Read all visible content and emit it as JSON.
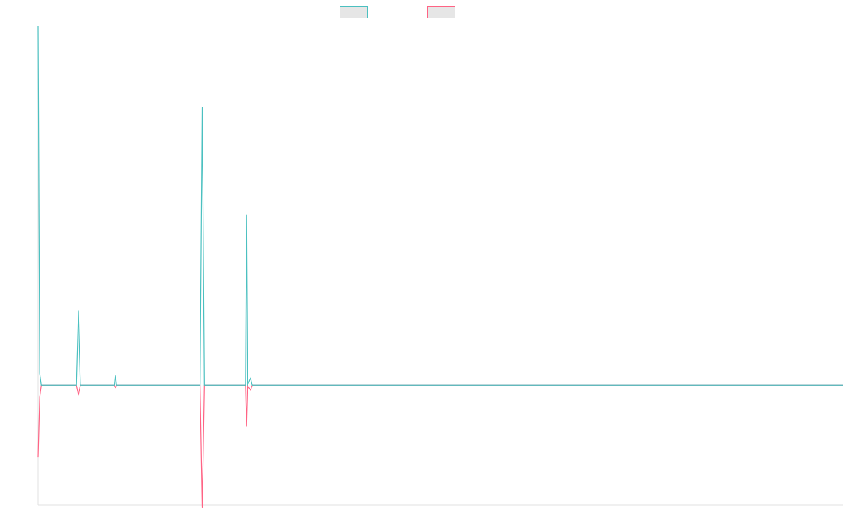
{
  "chart_data": {
    "type": "line",
    "title": "",
    "xlabel": "",
    "ylabel": "",
    "legend_position": "top-center",
    "grid": false,
    "xlim": [
      0,
      160
    ],
    "ylim": [
      -50,
      150
    ],
    "baseline": 0,
    "series": [
      {
        "name": "",
        "color": "#4bc0c0",
        "points": [
          [
            0,
            150
          ],
          [
            0.3,
            5
          ],
          [
            0.6,
            0
          ],
          [
            7.6,
            0
          ],
          [
            8,
            31
          ],
          [
            8.4,
            0
          ],
          [
            15.2,
            0
          ],
          [
            15.4,
            4
          ],
          [
            15.6,
            0
          ],
          [
            32.2,
            0
          ],
          [
            32.6,
            116
          ],
          [
            33,
            0
          ],
          [
            41.2,
            0
          ],
          [
            41.4,
            71
          ],
          [
            41.6,
            0
          ],
          [
            42.2,
            3
          ],
          [
            42.5,
            0
          ],
          [
            160,
            0
          ]
        ]
      },
      {
        "name": "",
        "color": "#ff6384",
        "points": [
          [
            0,
            -30
          ],
          [
            0.3,
            -5
          ],
          [
            0.6,
            0
          ],
          [
            7.6,
            0
          ],
          [
            8,
            -4
          ],
          [
            8.4,
            0
          ],
          [
            15.2,
            0
          ],
          [
            15.4,
            -1
          ],
          [
            15.6,
            0
          ],
          [
            32.2,
            0
          ],
          [
            32.6,
            -51
          ],
          [
            33,
            0
          ],
          [
            41.2,
            0
          ],
          [
            41.4,
            -17
          ],
          [
            41.6,
            0
          ],
          [
            42.2,
            -2
          ],
          [
            42.5,
            0
          ],
          [
            160,
            0
          ]
        ]
      }
    ]
  }
}
